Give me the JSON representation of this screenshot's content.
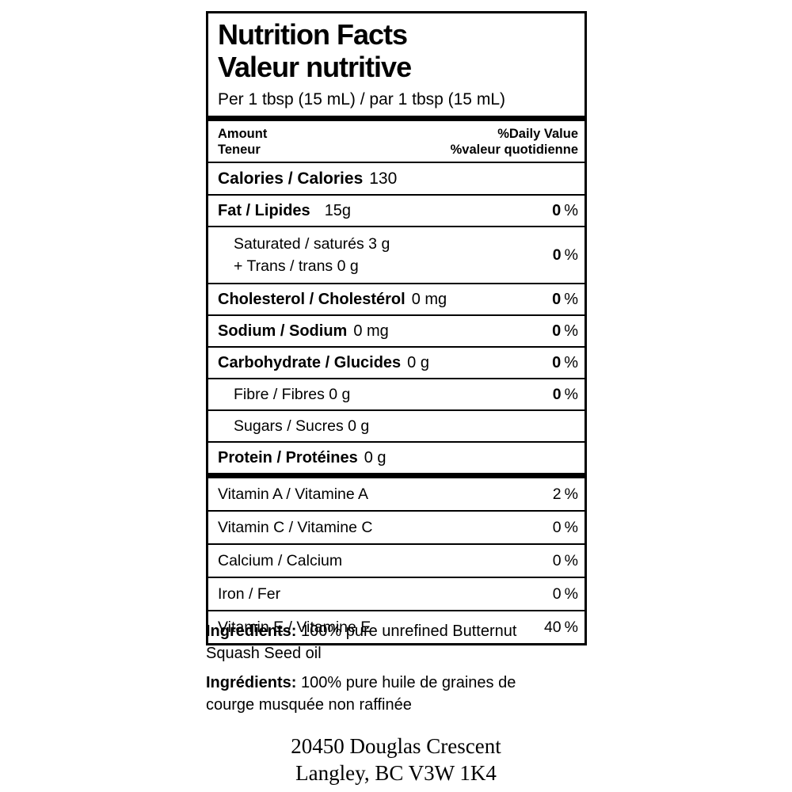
{
  "label": {
    "title_en": "Nutrition Facts",
    "title_fr": "Valeur nutritive",
    "serving": "Per 1 tbsp (15 mL) / par 1 tbsp (15 mL)",
    "percent_sign": "%",
    "columns": {
      "amount_en": "Amount",
      "amount_fr": "Teneur",
      "dv_en": "%Daily Value",
      "dv_fr": "%valeur quotidienne"
    },
    "calories": {
      "name": "Calories / Calories",
      "value": "130"
    },
    "fat": {
      "name": "Fat / Lipides",
      "amount": "15g",
      "dv": "0"
    },
    "saturated_trans": {
      "line1": "Saturated / saturés 3 g",
      "line2": "+ Trans / trans 0 g",
      "dv": "0"
    },
    "cholesterol": {
      "name": "Cholesterol / Cholestérol",
      "amount": "0 mg",
      "dv": "0"
    },
    "sodium": {
      "name": "Sodium / Sodium",
      "amount": "0 mg",
      "dv": "0"
    },
    "carbohydrate": {
      "name": "Carbohydrate / Glucides",
      "amount": "0 g",
      "dv": "0"
    },
    "fibre": {
      "name": "Fibre / Fibres 0 g",
      "dv": "0"
    },
    "sugars": {
      "name": "Sugars / Sucres 0 g"
    },
    "protein": {
      "name": "Protein / Protéines",
      "amount": "0 g"
    },
    "vitamin_a": {
      "name": "Vitamin A / Vitamine A",
      "dv": "2"
    },
    "vitamin_c": {
      "name": "Vitamin C / Vitamine C",
      "dv": "0"
    },
    "calcium": {
      "name": "Calcium / Calcium",
      "dv": "0"
    },
    "iron": {
      "name": "Iron / Fer",
      "dv": "0"
    },
    "vitamin_e": {
      "name": "Vitamin E / Vitamine E",
      "dv": "40"
    }
  },
  "ingredients": {
    "en_label": "Ingredients:",
    "en_text": " 100% pure unrefined Butternut Squash Seed oil",
    "fr_label": "Ingrédients:",
    "fr_text": " 100% pure huile de graines de courge musquée non raffinée"
  },
  "address": {
    "line1": "20450 Douglas Crescent",
    "line2": "Langley, BC V3W 1K4"
  },
  "colors": {
    "text": "#000000",
    "background": "#ffffff"
  }
}
